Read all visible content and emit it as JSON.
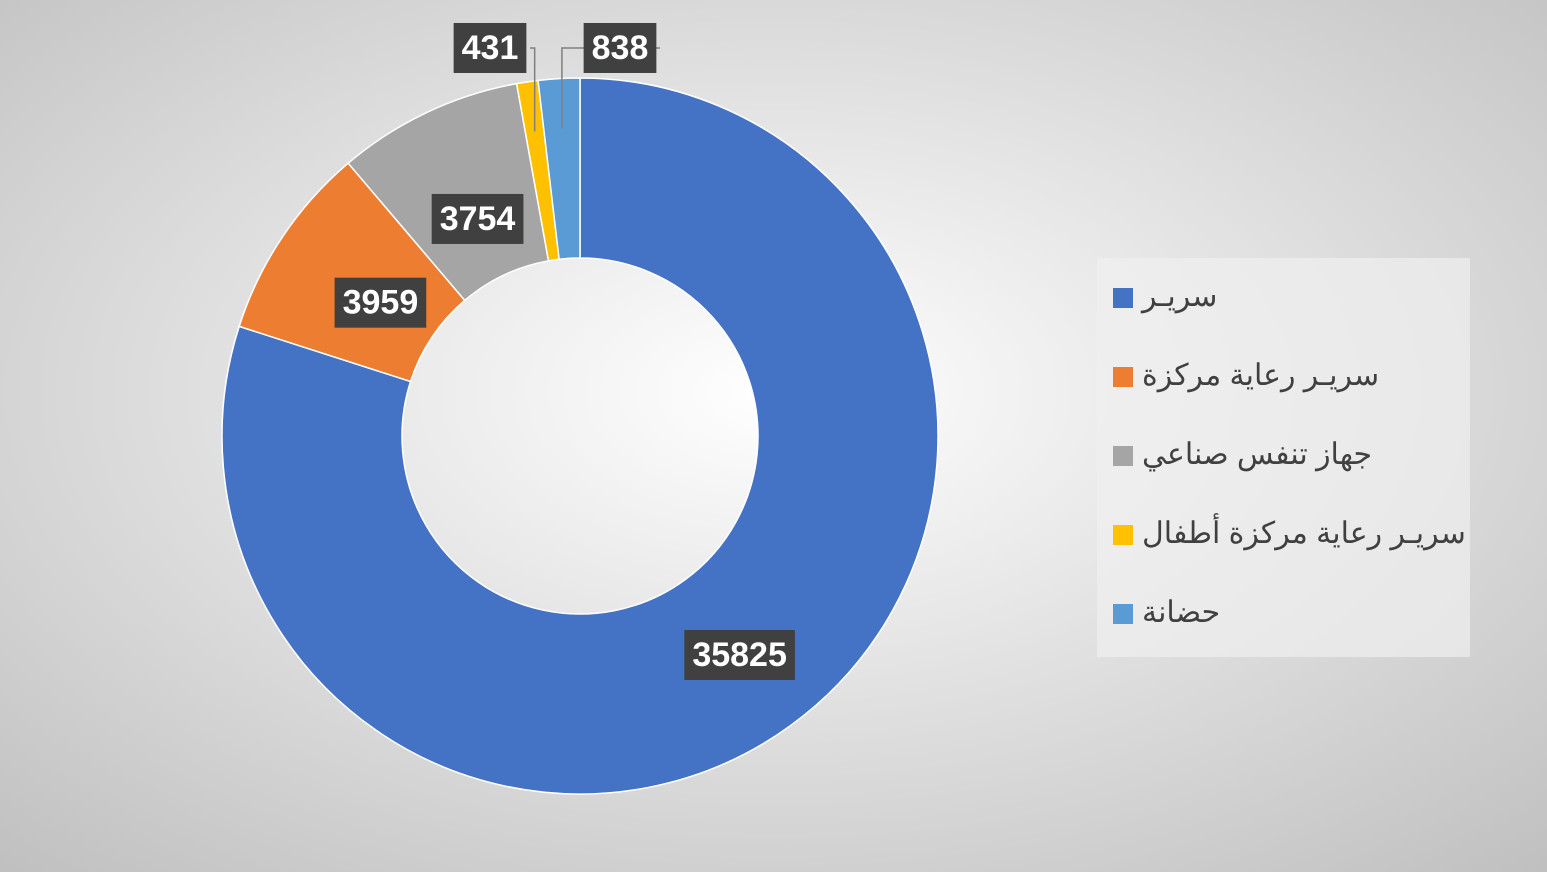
{
  "chart_data": {
    "type": "doughnut",
    "categories": [
      "سريـر",
      "سريـر رعاية مركزة",
      "جهاز تنفس صناعي",
      "سريـر رعاية مركزة أطفال",
      "حضانة"
    ],
    "values": [
      35825,
      3959,
      3754,
      431,
      838
    ],
    "colors": [
      "#4472c4",
      "#ed7d31",
      "#a5a5a5",
      "#ffc000",
      "#5b9bd5"
    ],
    "legend": "right"
  }
}
